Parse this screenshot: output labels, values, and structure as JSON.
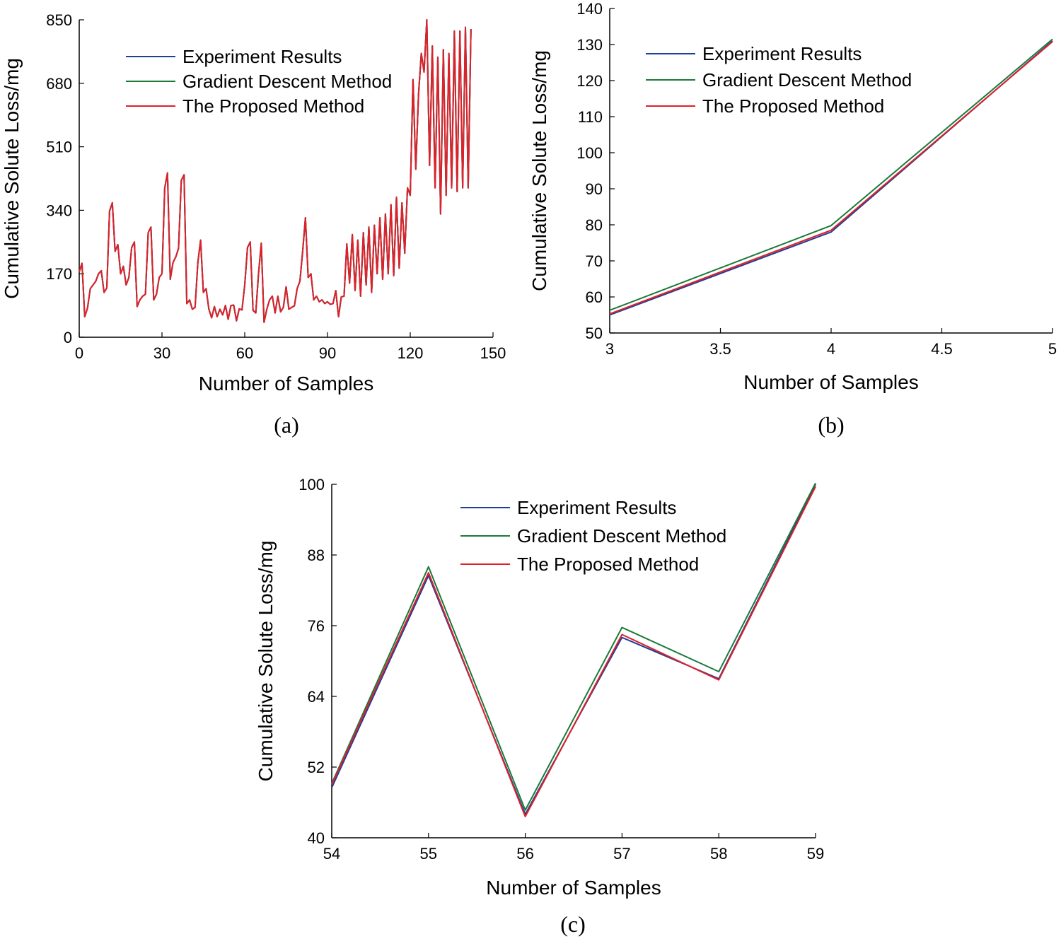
{
  "chart_data": [
    {
      "type": "line",
      "caption": "(a)",
      "xlabel": "Number of Samples",
      "ylabel": "Cumulative Solute Loss/mg",
      "xlim": [
        0,
        150
      ],
      "ylim": [
        0,
        850
      ],
      "xticks": [
        0,
        30,
        60,
        90,
        120,
        150
      ],
      "yticks": [
        0,
        170,
        340,
        510,
        680,
        850
      ],
      "legend_position": "top-left",
      "series": [
        {
          "name": "Experiment Results",
          "color": "#1f3f99"
        },
        {
          "name": "Gradient Descent Method",
          "color": "#1a7a3a"
        },
        {
          "name": "The Proposed Method",
          "color": "#e0202a"
        }
      ],
      "x": [
        0,
        1,
        2,
        3,
        4,
        5,
        6,
        7,
        8,
        9,
        10,
        11,
        12,
        13,
        14,
        15,
        16,
        17,
        18,
        19,
        20,
        21,
        22,
        23,
        24,
        25,
        26,
        27,
        28,
        29,
        30,
        31,
        32,
        33,
        34,
        35,
        36,
        37,
        38,
        39,
        40,
        41,
        42,
        43,
        44,
        45,
        46,
        47,
        48,
        49,
        50,
        51,
        52,
        53,
        54,
        55,
        56,
        57,
        58,
        59,
        60,
        61,
        62,
        63,
        64,
        65,
        66,
        67,
        68,
        69,
        70,
        71,
        72,
        73,
        74,
        75,
        76,
        77,
        78,
        79,
        80,
        81,
        82,
        83,
        84,
        85,
        86,
        87,
        88,
        89,
        90,
        91,
        92,
        93,
        94,
        95,
        96,
        97,
        98,
        99,
        100,
        101,
        102,
        103,
        104,
        105,
        106,
        107,
        108,
        109,
        110,
        111,
        112,
        113,
        114,
        115,
        116,
        117,
        118,
        119,
        120,
        121,
        122,
        123,
        124,
        125,
        126,
        127,
        128,
        129,
        130,
        131,
        132,
        133,
        134,
        135,
        136,
        137,
        138,
        139,
        140,
        141,
        142
      ],
      "y": [
        175,
        198,
        55,
        78,
        130,
        140,
        150,
        170,
        178,
        120,
        132,
        338,
        360,
        230,
        248,
        170,
        190,
        140,
        160,
        240,
        255,
        82,
        100,
        110,
        115,
        280,
        295,
        100,
        115,
        160,
        170,
        400,
        440,
        155,
        200,
        215,
        238,
        420,
        435,
        90,
        100,
        75,
        80,
        200,
        260,
        120,
        130,
        75,
        52,
        82,
        55,
        75,
        60,
        85,
        48,
        85,
        86,
        44,
        76,
        73,
        140,
        240,
        255,
        72,
        65,
        170,
        252,
        40,
        75,
        100,
        110,
        65,
        110,
        68,
        80,
        135,
        75,
        80,
        84,
        130,
        150,
        230,
        320,
        160,
        170,
        100,
        110,
        95,
        100,
        90,
        95,
        88,
        90,
        125,
        55,
        108,
        110,
        250,
        145,
        275,
        125,
        260,
        110,
        280,
        140,
        295,
        120,
        300,
        170,
        320,
        155,
        330,
        170,
        355,
        165,
        375,
        185,
        360,
        225,
        400,
        380,
        690,
        450,
        650,
        760,
        710,
        850,
        460,
        780,
        400,
        750,
        330,
        770,
        380,
        760,
        400,
        820,
        390,
        820,
        400,
        830,
        400,
        825
      ]
    },
    {
      "type": "line",
      "caption": "(b)",
      "xlabel": "Number of Samples",
      "ylabel": "Cumulative Solute Loss/mg",
      "xlim": [
        3,
        5
      ],
      "ylim": [
        50,
        140
      ],
      "xticks": [
        "3",
        "3.5",
        "4",
        "4.5",
        "5"
      ],
      "yticks": [
        50,
        60,
        70,
        80,
        90,
        100,
        110,
        120,
        130,
        140
      ],
      "legend_position": "top-left",
      "series": [
        {
          "name": "Experiment Results",
          "color": "#1f3f99",
          "x": [
            3,
            4,
            5
          ],
          "values": [
            55.0,
            78.0,
            131.0
          ]
        },
        {
          "name": "Gradient Descent Method",
          "color": "#1a7a3a",
          "x": [
            3,
            4,
            5
          ],
          "values": [
            56.3,
            79.8,
            131.5
          ]
        },
        {
          "name": "The Proposed Method",
          "color": "#e0202a",
          "x": [
            3,
            4,
            5
          ],
          "values": [
            55.3,
            78.5,
            130.8
          ]
        }
      ]
    },
    {
      "type": "line",
      "caption": "(c)",
      "xlabel": "Number of Samples",
      "ylabel": "Cumulative Solute Loss/mg",
      "xlim": [
        54,
        59
      ],
      "ylim": [
        40,
        100
      ],
      "xticks": [
        54,
        55,
        56,
        57,
        58,
        59
      ],
      "yticks": [
        40,
        52,
        64,
        76,
        88,
        100
      ],
      "legend_position": "top-center",
      "series": [
        {
          "name": "Experiment Results",
          "color": "#1f3f99",
          "x": [
            54,
            55,
            56,
            57,
            58,
            59
          ],
          "values": [
            48.5,
            84.5,
            44.0,
            74.0,
            67.0,
            100.0
          ]
        },
        {
          "name": "Gradient Descent Method",
          "color": "#1a7a3a",
          "x": [
            54,
            55,
            56,
            57,
            58,
            59
          ],
          "values": [
            49.2,
            86.0,
            44.7,
            75.7,
            68.2,
            100.2
          ]
        },
        {
          "name": "The Proposed Method",
          "color": "#e0202a",
          "x": [
            54,
            55,
            56,
            57,
            58,
            59
          ],
          "values": [
            49.0,
            85.0,
            43.6,
            74.5,
            66.8,
            99.6
          ]
        }
      ]
    }
  ]
}
